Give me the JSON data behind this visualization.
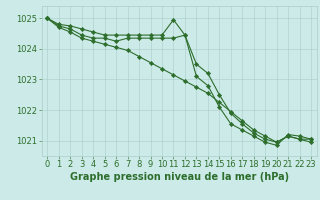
{
  "title": "Graphe pression niveau de la mer (hPa)",
  "background_color": "#cceae7",
  "grid_color": "#aacccc",
  "line_color": "#2d6e2d",
  "marker_color": "#2d6e2d",
  "xlim": [
    -0.5,
    23.5
  ],
  "ylim": [
    1020.5,
    1025.4
  ],
  "yticks": [
    1021,
    1022,
    1023,
    1024,
    1025
  ],
  "xticks": [
    0,
    1,
    2,
    3,
    4,
    5,
    6,
    7,
    8,
    9,
    10,
    11,
    12,
    13,
    14,
    15,
    16,
    17,
    18,
    19,
    20,
    21,
    22,
    23
  ],
  "series1": [
    1025.0,
    1024.8,
    1024.75,
    1024.65,
    1024.55,
    1024.45,
    1024.45,
    1024.45,
    1024.45,
    1024.45,
    1024.45,
    1024.95,
    1024.45,
    1023.1,
    1022.8,
    1022.1,
    1021.55,
    1021.35,
    1021.15,
    1020.95,
    1020.85,
    1021.2,
    1021.15,
    1021.05
  ],
  "series2": [
    1025.0,
    1024.75,
    1024.65,
    1024.45,
    1024.35,
    1024.35,
    1024.25,
    1024.35,
    1024.35,
    1024.35,
    1024.35,
    1024.35,
    1024.45,
    1023.5,
    1023.2,
    1022.5,
    1021.9,
    1021.55,
    1021.25,
    1021.05,
    1020.95,
    1021.15,
    1021.05,
    1021.05
  ],
  "series3": [
    1025.0,
    1024.7,
    1024.55,
    1024.35,
    1024.25,
    1024.15,
    1024.05,
    1023.95,
    1023.75,
    1023.55,
    1023.35,
    1023.15,
    1022.95,
    1022.75,
    1022.55,
    1022.25,
    1021.95,
    1021.65,
    1021.35,
    1021.15,
    1020.95,
    1021.15,
    1021.05,
    1020.95
  ],
  "title_fontsize": 7,
  "tick_fontsize": 6,
  "tick_color": "#2d6e2d",
  "linewidth": 0.8,
  "markersize": 2.2
}
